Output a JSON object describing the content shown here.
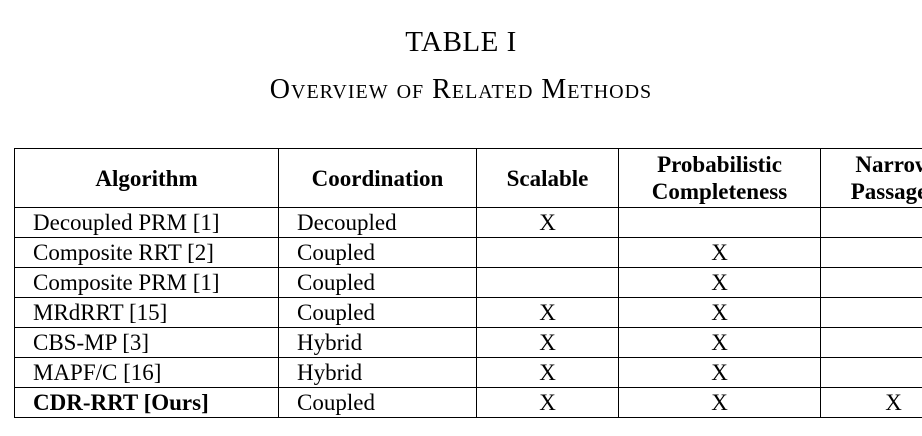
{
  "caption": {
    "number": "TABLE I",
    "title": "Overview of Related Methods"
  },
  "table": {
    "headers": {
      "algorithm": "Algorithm",
      "coordination": "Coordination",
      "scalable": "Scalable",
      "probabilistic_line1": "Probabilistic",
      "probabilistic_line2": "Completeness",
      "narrow_line1": "Narrow",
      "narrow_line2": "Passages"
    },
    "rows": [
      {
        "algorithm": "Decoupled PRM [1]",
        "coordination": "Decoupled",
        "scalable": "X",
        "probabilistic": "",
        "narrow": ""
      },
      {
        "algorithm": "Composite RRT [2]",
        "coordination": "Coupled",
        "scalable": "",
        "probabilistic": "X",
        "narrow": ""
      },
      {
        "algorithm": "Composite PRM [1]",
        "coordination": "Coupled",
        "scalable": "",
        "probabilistic": "X",
        "narrow": ""
      },
      {
        "algorithm": "MRdRRT [15]",
        "coordination": "Coupled",
        "scalable": "X",
        "probabilistic": "X",
        "narrow": ""
      },
      {
        "algorithm": "CBS-MP [3]",
        "coordination": "Hybrid",
        "scalable": "X",
        "probabilistic": "X",
        "narrow": ""
      },
      {
        "algorithm": "MAPF/C [16]",
        "coordination": "Hybrid",
        "scalable": "X",
        "probabilistic": "X",
        "narrow": ""
      },
      {
        "algorithm": "CDR-RRT [Ours]",
        "coordination": "Coupled",
        "scalable": "X",
        "probabilistic": "X",
        "narrow": "X"
      }
    ]
  }
}
